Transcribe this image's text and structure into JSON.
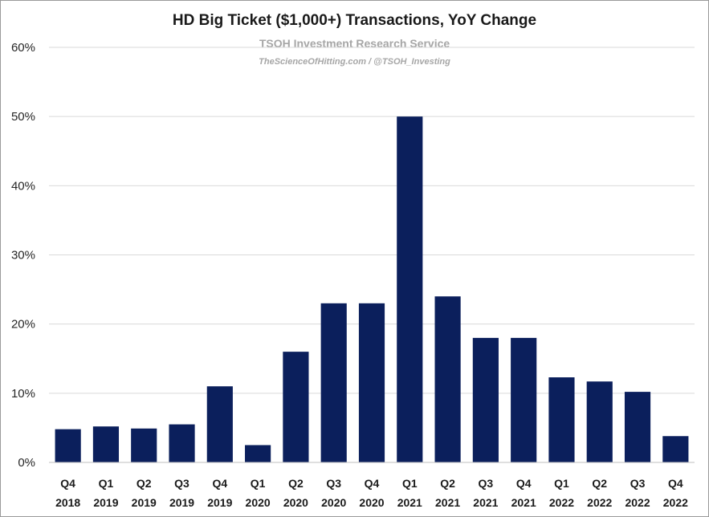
{
  "chart_data": {
    "type": "bar",
    "title": "HD Big Ticket ($1,000+) Transactions, YoY Change",
    "subtitle": "TSOH Investment Research Service",
    "subtitle2": "TheScienceOfHitting.com / @TSOH_Investing",
    "categories": [
      [
        "Q4",
        "2018"
      ],
      [
        "Q1",
        "2019"
      ],
      [
        "Q2",
        "2019"
      ],
      [
        "Q3",
        "2019"
      ],
      [
        "Q4",
        "2019"
      ],
      [
        "Q1",
        "2020"
      ],
      [
        "Q2",
        "2020"
      ],
      [
        "Q3",
        "2020"
      ],
      [
        "Q4",
        "2020"
      ],
      [
        "Q1",
        "2021"
      ],
      [
        "Q2",
        "2021"
      ],
      [
        "Q3",
        "2021"
      ],
      [
        "Q4",
        "2021"
      ],
      [
        "Q1",
        "2022"
      ],
      [
        "Q2",
        "2022"
      ],
      [
        "Q3",
        "2022"
      ],
      [
        "Q4",
        "2022"
      ]
    ],
    "values": [
      4.8,
      5.2,
      4.9,
      5.5,
      11.0,
      2.5,
      16.0,
      23.0,
      23.0,
      50.0,
      24.0,
      18.0,
      18.0,
      12.3,
      11.7,
      10.2,
      3.8
    ],
    "ylim": [
      0,
      60
    ],
    "yticks": [
      0,
      10,
      20,
      30,
      40,
      50,
      60
    ],
    "ytick_labels": [
      "0%",
      "10%",
      "20%",
      "30%",
      "40%",
      "50%",
      "60%"
    ],
    "grid": true,
    "legend": "none",
    "bar_color": "#0b1f5c",
    "grid_color": "#d9d9d9"
  }
}
